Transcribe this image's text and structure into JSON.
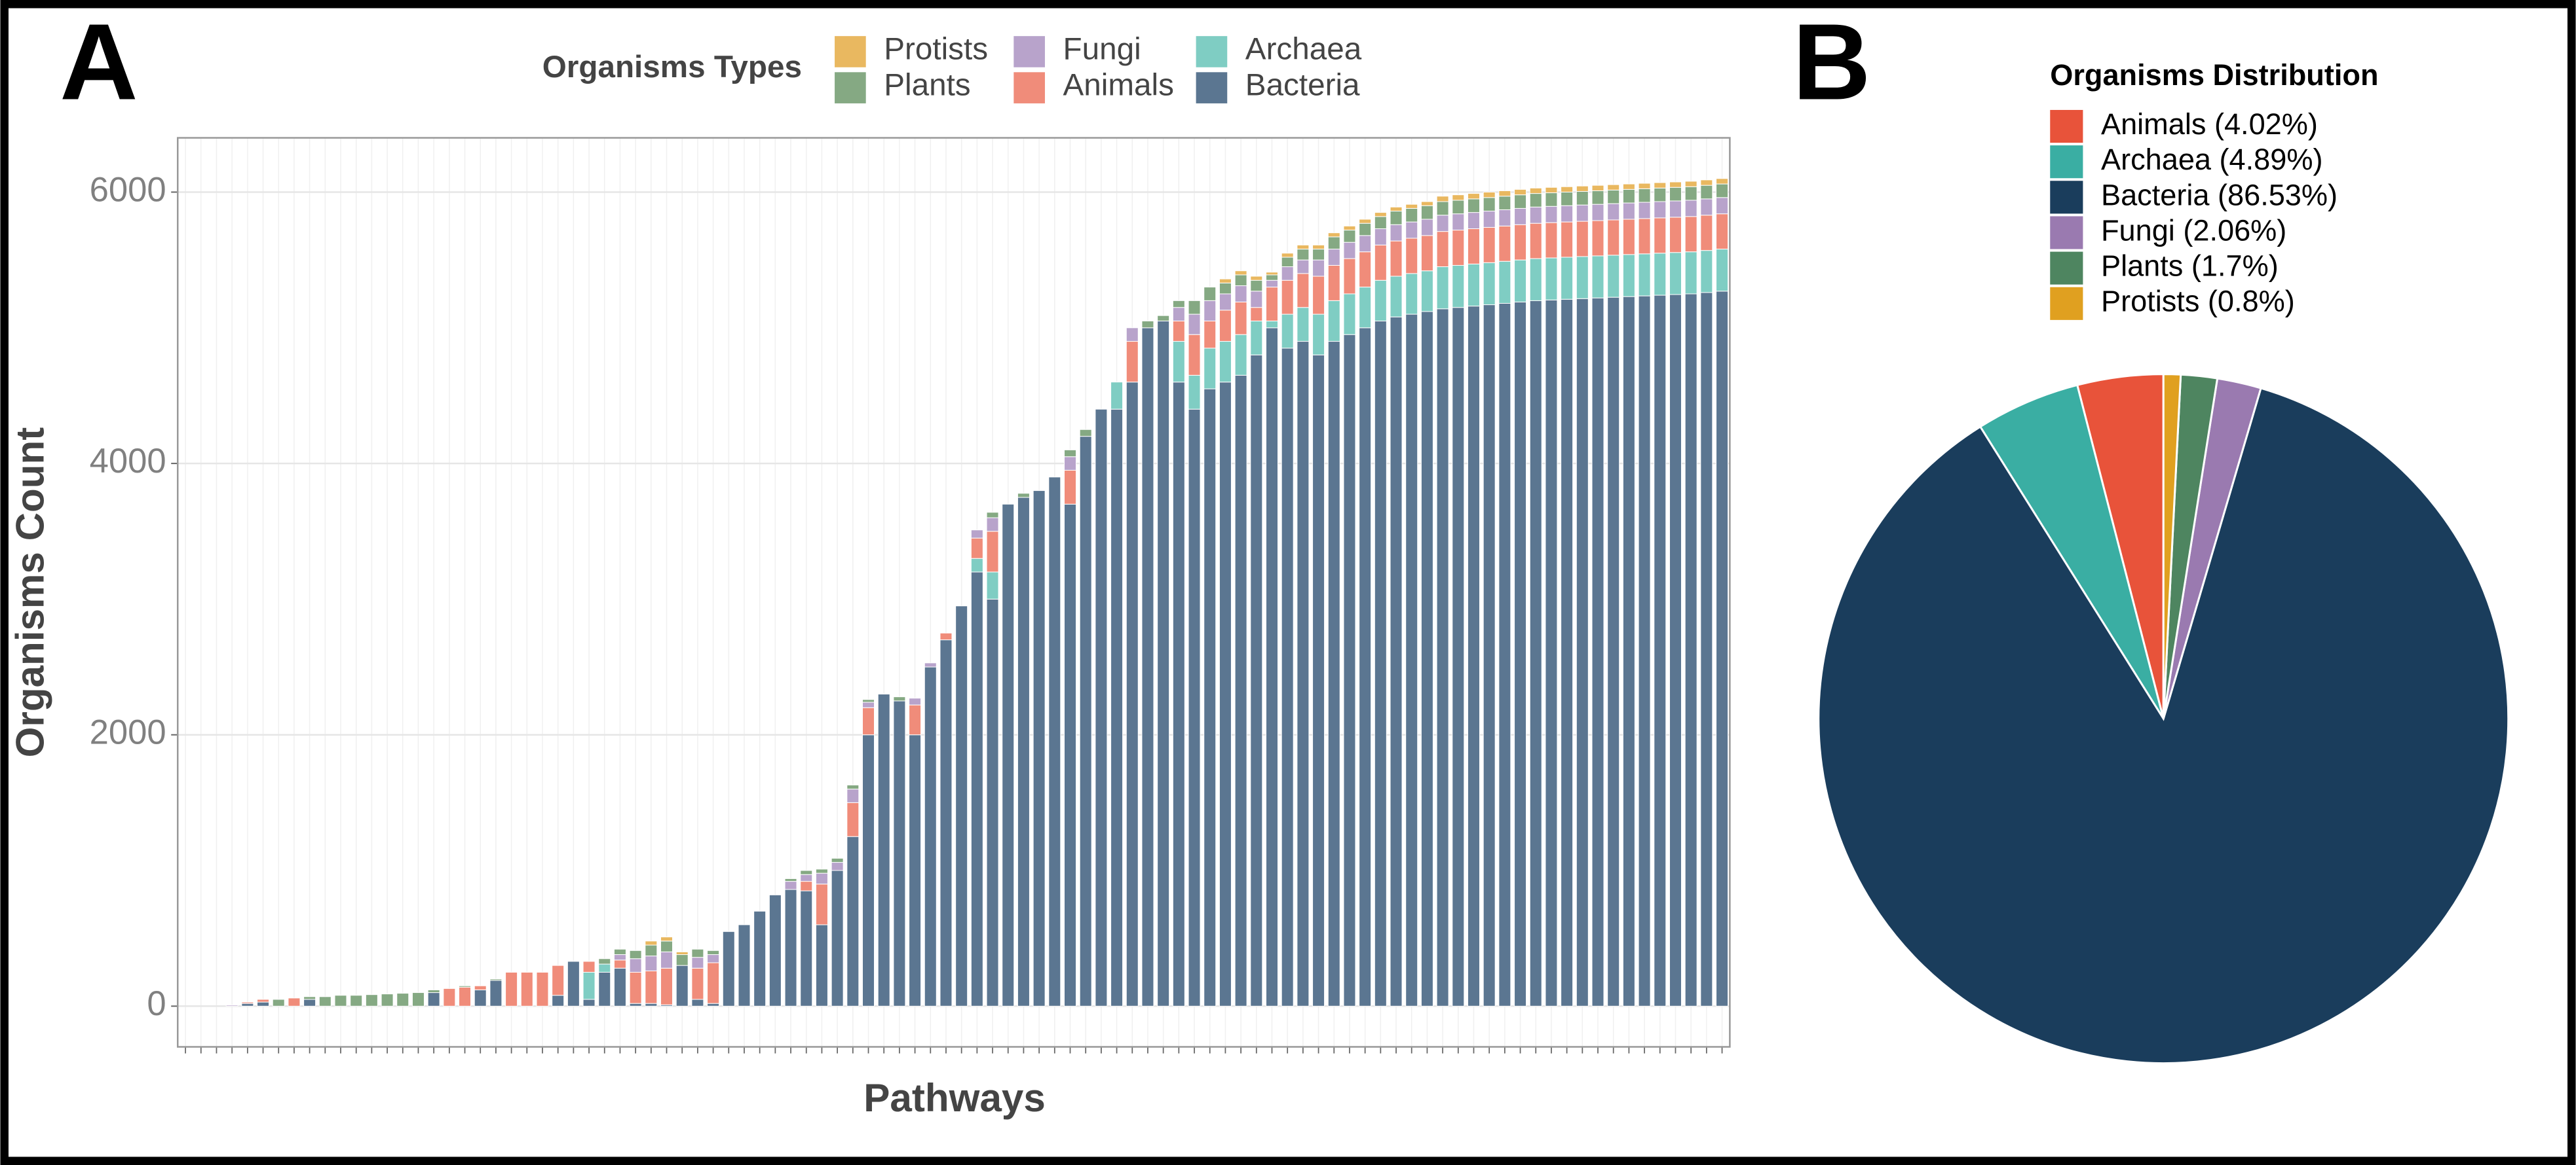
{
  "chart_data": [
    {
      "type": "stacked_bar",
      "panel": "A",
      "legend_title": "Organisms Types",
      "xlabel": "Pathways",
      "ylabel": "Organisms Count",
      "categories": [
        null,
        null,
        null,
        null,
        null,
        null,
        null,
        null,
        null,
        null,
        null,
        null,
        null,
        null,
        null,
        null,
        null,
        null,
        null,
        null,
        null,
        null,
        null,
        null,
        null,
        null,
        null,
        null,
        null,
        null,
        null,
        null,
        null,
        null,
        null,
        null,
        null,
        null,
        null,
        null,
        null,
        null,
        null,
        null,
        null,
        null,
        null,
        null,
        null,
        null,
        null,
        null,
        null,
        null,
        null,
        null,
        null,
        null,
        null,
        null,
        null,
        null,
        null,
        null,
        null,
        null,
        null,
        null,
        null,
        null,
        null,
        null,
        null,
        null,
        null,
        null,
        null,
        null,
        null,
        null,
        null,
        null,
        null,
        null,
        null,
        null,
        null,
        null,
        null,
        null,
        null,
        null,
        null,
        null,
        null,
        null,
        null,
        null,
        null,
        null
      ],
      "series": [
        {
          "name": "Bacteria",
          "color": "#5b7691",
          "values": [
            0,
            0,
            0,
            0,
            20,
            30,
            0,
            0,
            50,
            0,
            0,
            0,
            0,
            0,
            0,
            0,
            100,
            0,
            0,
            120,
            190,
            0,
            0,
            0,
            80,
            330,
            50,
            250,
            280,
            20,
            20,
            10,
            300,
            50,
            20,
            550,
            600,
            700,
            820,
            860,
            850,
            600,
            1000,
            1250,
            2000,
            2300,
            2250,
            2000,
            2500,
            2700,
            2950,
            3200,
            3000,
            3700,
            3750,
            3800,
            3900,
            3700,
            4200,
            4400,
            4400,
            4600,
            5000,
            5050,
            4600,
            4400,
            4550,
            4600,
            4650,
            4800,
            5000,
            4850,
            4900,
            4800,
            4900,
            4950,
            5000,
            5050,
            5080,
            5100,
            5120,
            5140,
            5150,
            5160,
            5170,
            5180,
            5190,
            5200,
            5205,
            5210,
            5215,
            5220,
            5225,
            5230,
            5235,
            5240,
            5245,
            5250,
            5260,
            5270
          ]
        },
        {
          "name": "Archaea",
          "color": "#7fcdc3",
          "values": [
            0,
            0,
            0,
            0,
            0,
            0,
            0,
            0,
            0,
            0,
            0,
            0,
            0,
            0,
            0,
            0,
            0,
            0,
            0,
            0,
            0,
            0,
            0,
            0,
            0,
            0,
            200,
            60,
            0,
            0,
            0,
            0,
            0,
            0,
            0,
            0,
            0,
            0,
            0,
            0,
            0,
            0,
            0,
            0,
            0,
            0,
            0,
            0,
            0,
            0,
            0,
            100,
            200,
            0,
            0,
            0,
            0,
            0,
            0,
            0,
            200,
            0,
            0,
            0,
            300,
            250,
            300,
            300,
            300,
            250,
            50,
            250,
            250,
            300,
            300,
            300,
            300,
            300,
            300,
            300,
            300,
            310,
            310,
            310,
            310,
            310,
            310,
            310,
            310,
            310,
            310,
            310,
            310,
            310,
            310,
            310,
            310,
            310,
            310,
            310
          ]
        },
        {
          "name": "Animals",
          "color": "#f08c7a",
          "values": [
            0,
            0,
            0,
            0,
            10,
            20,
            0,
            60,
            0,
            0,
            0,
            0,
            0,
            0,
            0,
            0,
            0,
            130,
            140,
            30,
            0,
            250,
            250,
            250,
            220,
            0,
            80,
            0,
            60,
            230,
            240,
            270,
            0,
            230,
            300,
            0,
            0,
            0,
            0,
            0,
            70,
            300,
            0,
            250,
            200,
            0,
            0,
            220,
            0,
            50,
            0,
            150,
            300,
            0,
            0,
            0,
            0,
            250,
            0,
            0,
            0,
            300,
            0,
            0,
            150,
            300,
            200,
            230,
            240,
            100,
            250,
            250,
            250,
            280,
            260,
            260,
            260,
            260,
            260,
            260,
            260,
            260,
            260,
            260,
            260,
            260,
            260,
            260,
            260,
            260,
            260,
            260,
            260,
            260,
            260,
            260,
            260,
            260,
            260,
            260
          ]
        },
        {
          "name": "Fungi",
          "color": "#b8a3cb",
          "values": [
            0,
            0,
            0,
            8,
            0,
            0,
            0,
            0,
            0,
            0,
            0,
            0,
            0,
            0,
            0,
            0,
            0,
            0,
            0,
            0,
            0,
            0,
            0,
            0,
            0,
            0,
            0,
            0,
            40,
            100,
            110,
            120,
            0,
            80,
            60,
            0,
            0,
            0,
            0,
            60,
            50,
            80,
            60,
            100,
            40,
            0,
            0,
            50,
            30,
            0,
            0,
            60,
            100,
            0,
            0,
            0,
            0,
            100,
            0,
            0,
            0,
            100,
            0,
            0,
            100,
            150,
            150,
            120,
            120,
            120,
            50,
            100,
            100,
            120,
            120,
            120,
            120,
            120,
            120,
            120,
            120,
            120,
            120,
            120,
            120,
            120,
            120,
            120,
            120,
            120,
            120,
            120,
            120,
            120,
            120,
            120,
            120,
            120,
            120,
            120
          ]
        },
        {
          "name": "Plants",
          "color": "#85a983",
          "values": [
            0,
            0,
            0,
            0,
            0,
            0,
            50,
            0,
            20,
            70,
            80,
            80,
            85,
            90,
            95,
            100,
            20,
            0,
            10,
            0,
            10,
            0,
            0,
            0,
            0,
            0,
            0,
            40,
            40,
            60,
            80,
            80,
            80,
            60,
            30,
            0,
            0,
            0,
            0,
            20,
            30,
            30,
            30,
            30,
            20,
            0,
            30,
            0,
            0,
            0,
            0,
            0,
            40,
            0,
            30,
            0,
            0,
            50,
            50,
            0,
            0,
            0,
            50,
            40,
            50,
            100,
            100,
            80,
            80,
            80,
            40,
            70,
            80,
            80,
            90,
            90,
            90,
            90,
            100,
            100,
            100,
            100,
            100,
            100,
            100,
            100,
            100,
            100,
            100,
            100,
            100,
            100,
            100,
            100,
            100,
            100,
            100,
            100,
            100,
            100
          ]
        },
        {
          "name": "Protists",
          "color": "#e9b860",
          "values": [
            0,
            0,
            0,
            0,
            0,
            0,
            0,
            0,
            0,
            0,
            0,
            0,
            0,
            0,
            0,
            0,
            0,
            0,
            0,
            0,
            0,
            0,
            0,
            0,
            0,
            0,
            0,
            0,
            0,
            0,
            30,
            30,
            20,
            0,
            0,
            0,
            0,
            0,
            0,
            0,
            0,
            0,
            0,
            0,
            0,
            0,
            0,
            0,
            0,
            0,
            0,
            0,
            0,
            0,
            0,
            0,
            0,
            0,
            0,
            0,
            0,
            0,
            0,
            0,
            0,
            0,
            0,
            30,
            30,
            30,
            20,
            30,
            30,
            30,
            30,
            30,
            30,
            30,
            30,
            30,
            30,
            40,
            40,
            40,
            40,
            40,
            40,
            40,
            40,
            40,
            40,
            40,
            40,
            40,
            40,
            40,
            40,
            40,
            40,
            40
          ]
        }
      ],
      "ylim": [
        -300,
        6400
      ],
      "yticks": [
        0,
        2000,
        4000,
        6000
      ],
      "grid": true
    },
    {
      "type": "pie",
      "panel": "B",
      "legend_title": "Organisms Distribution",
      "values": [
        4.02,
        4.89,
        86.53,
        2.06,
        1.7,
        0.8
      ],
      "value_labels": [
        "Animals (4.02%)",
        "Archaea (4.89%)",
        "Bacteria (86.53%)",
        "Fungi (2.06%)",
        "Plants (1.7%)",
        "Protists (0.8%)"
      ],
      "colors": [
        "#e8533a",
        "#3aaea3",
        "#1a3d5c",
        "#9a7ab0",
        "#4e8560",
        "#e0a020"
      ],
      "direction": "counterclockwise",
      "start": "top"
    }
  ]
}
